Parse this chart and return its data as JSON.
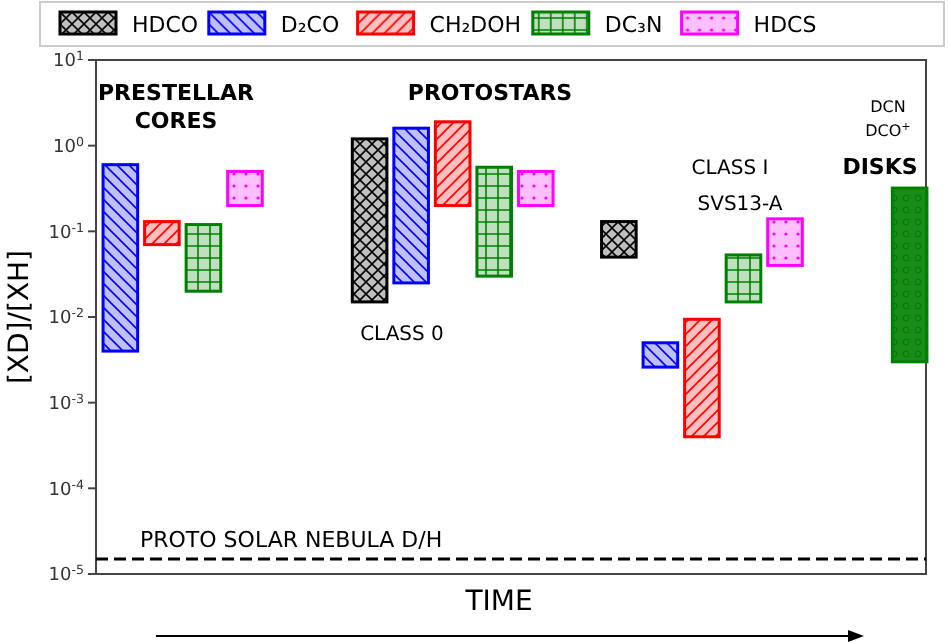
{
  "chart_data": {
    "type": "bar",
    "ylabel": "[XD]/[XH]",
    "xlabel": "TIME",
    "log": "y",
    "legend": "top",
    "categories": [
      null,
      null,
      null,
      null,
      null,
      null,
      null,
      null,
      null,
      null,
      null,
      null,
      null,
      null,
      null,
      null,
      null,
      null,
      null,
      null
    ],
    "ylim": [
      1e-05,
      10
    ],
    "yticks": [
      {
        "value": 1e-05,
        "label": "10$^{-5}$"
      },
      {
        "value": 0.0001,
        "label": "10$^{-4}$"
      },
      {
        "value": 0.001,
        "label": "10$^{-3}$"
      },
      {
        "value": 0.01,
        "label": "10$^{-2}$"
      },
      {
        "value": 0.1,
        "label": "10$^{-1}$"
      },
      {
        "value": 1,
        "label": "10$^{0}$"
      },
      {
        "value": 10,
        "label": "10$^{1}$"
      }
    ],
    "series": [
      {
        "name": "HDCO",
        "color": "#000000",
        "values": [
          null,
          null,
          null,
          null,
          null,
          null,
          1.185,
          null,
          null,
          null,
          null,
          null,
          0.08,
          null,
          null,
          null,
          null,
          null,
          null,
          null
        ],
        "base": [
          null,
          null,
          null,
          null,
          null,
          null,
          0.015,
          null,
          null,
          null,
          null,
          null,
          0.05,
          null,
          null,
          null,
          null,
          null,
          null,
          null
        ]
      },
      {
        "name": "D₂CO",
        "color": "#0000ff",
        "values": [
          0.596,
          null,
          null,
          null,
          null,
          null,
          null,
          1.575,
          null,
          null,
          null,
          null,
          null,
          0.0024,
          null,
          null,
          null,
          null,
          null,
          null
        ],
        "base": [
          0.004,
          null,
          null,
          null,
          null,
          null,
          null,
          0.025,
          null,
          null,
          null,
          null,
          null,
          0.0026,
          null,
          null,
          null,
          null,
          null,
          null
        ]
      },
      {
        "name": "CH₂DOH",
        "color": "#ff0000",
        "values": [
          null,
          0.06,
          null,
          null,
          null,
          null,
          null,
          null,
          1.7,
          null,
          null,
          null,
          null,
          null,
          0.009,
          null,
          null,
          null,
          null,
          null
        ],
        "base": [
          null,
          0.07,
          null,
          null,
          null,
          null,
          null,
          null,
          0.2,
          null,
          null,
          null,
          null,
          null,
          0.0004,
          null,
          null,
          null,
          null,
          null
        ]
      },
      {
        "name": "DC₃N",
        "color": "#008000",
        "values": [
          null,
          null,
          0.1,
          null,
          null,
          null,
          null,
          null,
          null,
          0.53,
          null,
          null,
          null,
          null,
          null,
          0.038,
          null,
          null,
          null,
          null
        ],
        "base": [
          null,
          null,
          0.02,
          null,
          null,
          null,
          null,
          null,
          null,
          0.03,
          null,
          null,
          null,
          null,
          null,
          0.015,
          null,
          null,
          null,
          null
        ]
      },
      {
        "name": "HDCS",
        "color": "#ff00ff",
        "values": [
          null,
          null,
          null,
          0.3,
          null,
          null,
          null,
          null,
          null,
          null,
          0.3,
          null,
          null,
          null,
          null,
          null,
          0.1,
          null,
          null,
          null
        ],
        "base": [
          null,
          null,
          null,
          0.2,
          null,
          null,
          null,
          null,
          null,
          null,
          0.2,
          null,
          null,
          null,
          null,
          null,
          0.04,
          null,
          null,
          null
        ]
      },
      {
        "color": "#008000",
        "values": [
          null,
          null,
          null,
          null,
          null,
          null,
          null,
          null,
          null,
          null,
          null,
          null,
          null,
          null,
          null,
          null,
          null,
          null,
          null,
          0.317
        ],
        "base": [
          null,
          null,
          null,
          null,
          null,
          null,
          null,
          null,
          null,
          null,
          null,
          null,
          null,
          null,
          null,
          null,
          null,
          null,
          null,
          0.003
        ]
      }
    ],
    "ref_lines": [
      {
        "axis": "y",
        "value": 1.5e-05,
        "label": "PROTO SOLAR NEBULA D/H",
        "color": "#000000",
        "line_style": "dashed"
      }
    ],
    "annotations": [
      "PRESTELLAR",
      "CORES",
      "PROTOSTARS",
      "CLASS 0",
      "CLASS I",
      "SVS13-A",
      "DCN",
      "DCO$^{+}$",
      "DISKS"
    ]
  }
}
